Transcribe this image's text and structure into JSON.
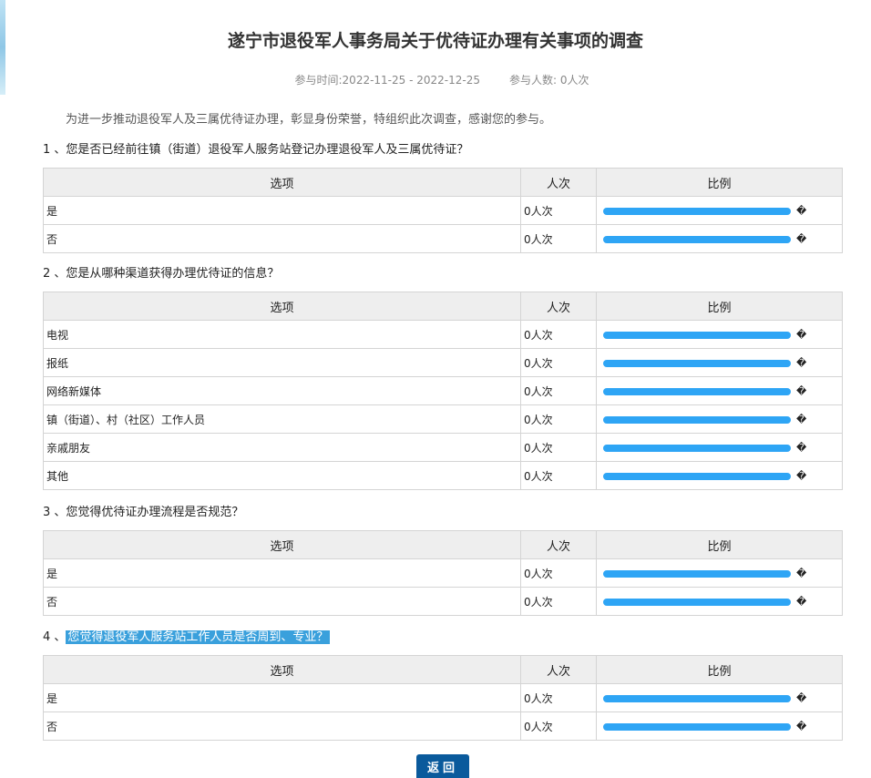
{
  "title": "遂宁市退役军人事务局关于优待证办理有关事项的调查",
  "meta": {
    "time": "参与时间:2022-11-25 - 2022-12-25",
    "count": "参与人数: 0人次"
  },
  "intro": "为进一步推动退役军人及三属优待证办理，彰显身份荣誉，特组织此次调查，感谢您的参与。",
  "headers": {
    "option": "选项",
    "count": "人次",
    "ratio": "比例"
  },
  "bar_color": "#2ea5f5",
  "ratio_glyph": "�",
  "questions": [
    {
      "num": "1 、",
      "text": "您是否已经前往镇（街道）退役军人服务站登记办理退役军人及三属优待证？",
      "rows": [
        {
          "option": "是",
          "count": "0人次",
          "ratio": 0
        },
        {
          "option": "否",
          "count": "0人次",
          "ratio": 0
        }
      ]
    },
    {
      "num": "2 、",
      "text": "您是从哪种渠道获得办理优待证的信息？",
      "rows": [
        {
          "option": "电视",
          "count": "0人次",
          "ratio": 0
        },
        {
          "option": "报纸",
          "count": "0人次",
          "ratio": 0
        },
        {
          "option": "网络新媒体",
          "count": "0人次",
          "ratio": 0
        },
        {
          "option": "镇（街道）、村（社区）工作人员",
          "count": "0人次",
          "ratio": 0
        },
        {
          "option": "亲戚朋友",
          "count": "0人次",
          "ratio": 0
        },
        {
          "option": "其他",
          "count": "0人次",
          "ratio": 0
        }
      ]
    },
    {
      "num": "3 、",
      "text": "您觉得优待证办理流程是否规范？",
      "rows": [
        {
          "option": "是",
          "count": "0人次",
          "ratio": 0
        },
        {
          "option": "否",
          "count": "0人次",
          "ratio": 0
        }
      ]
    },
    {
      "num": "4 、",
      "text": "您觉得退役军人服务站工作人员是否周到、专业？",
      "selected": true,
      "rows": [
        {
          "option": "是",
          "count": "0人次",
          "ratio": 0
        },
        {
          "option": "否",
          "count": "0人次",
          "ratio": 0
        }
      ]
    }
  ],
  "back_label": "返回"
}
